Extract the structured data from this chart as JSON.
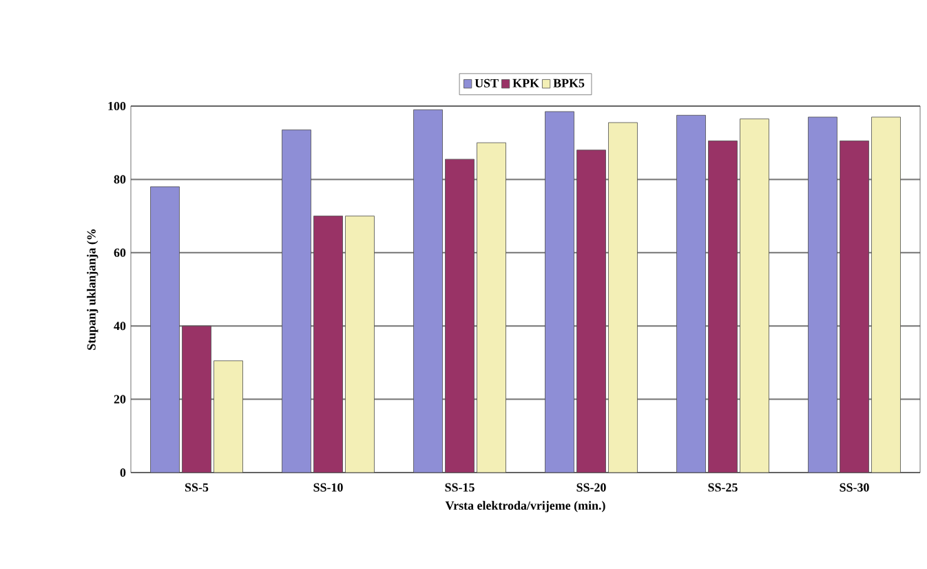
{
  "chart_data": {
    "type": "bar",
    "xlabel": "Vrsta elektroda/vrijeme (min.)",
    "ylabel": "Stupanj uklanjanja (%",
    "categories": [
      "SS-5",
      "SS-10",
      "SS-15",
      "SS-20",
      "SS-25",
      "SS-30"
    ],
    "series": [
      {
        "name": "UST",
        "color": "#8e8ed6",
        "values": [
          78,
          93.5,
          99,
          98.5,
          97.5,
          97
        ]
      },
      {
        "name": "KPK",
        "color": "#993366",
        "values": [
          40,
          70,
          85.5,
          88,
          90.5,
          90.5
        ]
      },
      {
        "name": "BPK5",
        "color": "#f3efb6",
        "values": [
          30.5,
          70,
          90,
          95.5,
          96.5,
          97
        ]
      }
    ],
    "ylim": [
      0,
      100
    ],
    "yticks": [
      0,
      20,
      40,
      60,
      80,
      100
    ],
    "grid": "y",
    "legend": "top"
  }
}
